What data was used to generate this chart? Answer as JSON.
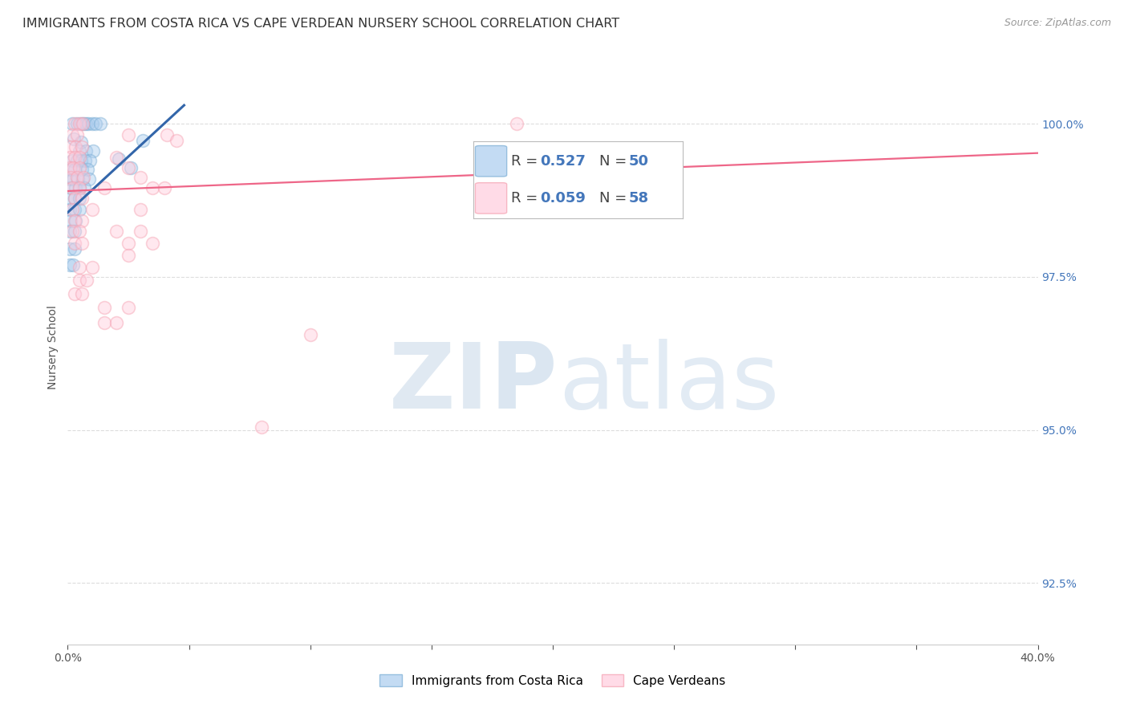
{
  "title": "IMMIGRANTS FROM COSTA RICA VS CAPE VERDEAN NURSERY SCHOOL CORRELATION CHART",
  "source": "Source: ZipAtlas.com",
  "ylabel": "Nursery School",
  "yticks": [
    92.5,
    95.0,
    97.5,
    100.0
  ],
  "ytick_labels": [
    "92.5%",
    "95.0%",
    "97.5%",
    "100.0%"
  ],
  "xlim": [
    0.0,
    40.0
  ],
  "ylim": [
    91.5,
    101.2
  ],
  "legend_label_blue": "Immigrants from Costa Rica",
  "legend_label_pink": "Cape Verdeans",
  "blue_color": "#7aadd4",
  "pink_color": "#f5a0b0",
  "blue_fill_color": "#aaccee",
  "pink_fill_color": "#ffccdd",
  "blue_line_color": "#3366aa",
  "pink_line_color": "#ee6688",
  "blue_scatter": [
    [
      0.2,
      100.0
    ],
    [
      0.4,
      100.0
    ],
    [
      0.55,
      100.0
    ],
    [
      0.65,
      100.0
    ],
    [
      0.75,
      100.0
    ],
    [
      0.85,
      100.0
    ],
    [
      1.0,
      100.0
    ],
    [
      1.15,
      100.0
    ],
    [
      1.35,
      100.0
    ],
    [
      0.25,
      99.75
    ],
    [
      0.55,
      99.7
    ],
    [
      0.5,
      99.55
    ],
    [
      0.75,
      99.55
    ],
    [
      1.05,
      99.55
    ],
    [
      0.18,
      99.4
    ],
    [
      0.38,
      99.4
    ],
    [
      0.55,
      99.4
    ],
    [
      0.72,
      99.4
    ],
    [
      0.92,
      99.4
    ],
    [
      0.12,
      99.25
    ],
    [
      0.28,
      99.25
    ],
    [
      0.58,
      99.25
    ],
    [
      0.82,
      99.25
    ],
    [
      0.08,
      99.1
    ],
    [
      0.22,
      99.1
    ],
    [
      0.42,
      99.1
    ],
    [
      0.62,
      99.1
    ],
    [
      0.88,
      99.1
    ],
    [
      0.12,
      98.95
    ],
    [
      0.32,
      98.95
    ],
    [
      0.48,
      98.95
    ],
    [
      0.68,
      98.95
    ],
    [
      0.08,
      98.78
    ],
    [
      0.28,
      98.78
    ],
    [
      0.48,
      98.78
    ],
    [
      0.08,
      98.6
    ],
    [
      0.28,
      98.6
    ],
    [
      0.48,
      98.6
    ],
    [
      0.12,
      98.42
    ],
    [
      0.32,
      98.42
    ],
    [
      0.08,
      98.25
    ],
    [
      0.28,
      98.25
    ],
    [
      0.08,
      97.95
    ],
    [
      0.28,
      97.95
    ],
    [
      0.08,
      97.7
    ],
    [
      0.22,
      97.7
    ],
    [
      3.1,
      99.72
    ],
    [
      2.1,
      99.42
    ],
    [
      2.6,
      99.28
    ]
  ],
  "pink_scatter": [
    [
      0.28,
      100.0
    ],
    [
      0.48,
      100.0
    ],
    [
      0.62,
      100.0
    ],
    [
      18.5,
      100.0
    ],
    [
      0.18,
      99.82
    ],
    [
      0.38,
      99.82
    ],
    [
      2.5,
      99.82
    ],
    [
      4.1,
      99.82
    ],
    [
      4.5,
      99.72
    ],
    [
      0.12,
      99.62
    ],
    [
      0.32,
      99.62
    ],
    [
      0.58,
      99.62
    ],
    [
      0.08,
      99.45
    ],
    [
      0.28,
      99.45
    ],
    [
      0.48,
      99.45
    ],
    [
      2.0,
      99.45
    ],
    [
      0.08,
      99.28
    ],
    [
      0.22,
      99.28
    ],
    [
      0.48,
      99.28
    ],
    [
      2.5,
      99.28
    ],
    [
      0.12,
      99.12
    ],
    [
      0.38,
      99.12
    ],
    [
      0.65,
      99.12
    ],
    [
      3.0,
      99.12
    ],
    [
      0.18,
      98.95
    ],
    [
      0.48,
      98.95
    ],
    [
      1.5,
      98.95
    ],
    [
      3.5,
      98.95
    ],
    [
      4.0,
      98.95
    ],
    [
      0.28,
      98.78
    ],
    [
      0.58,
      98.78
    ],
    [
      0.18,
      98.6
    ],
    [
      1.0,
      98.6
    ],
    [
      3.0,
      98.6
    ],
    [
      0.28,
      98.42
    ],
    [
      0.58,
      98.42
    ],
    [
      0.18,
      98.25
    ],
    [
      0.48,
      98.25
    ],
    [
      2.0,
      98.25
    ],
    [
      3.0,
      98.25
    ],
    [
      0.28,
      98.05
    ],
    [
      0.58,
      98.05
    ],
    [
      2.5,
      98.05
    ],
    [
      3.5,
      98.05
    ],
    [
      2.5,
      97.85
    ],
    [
      0.48,
      97.65
    ],
    [
      1.0,
      97.65
    ],
    [
      0.48,
      97.45
    ],
    [
      0.78,
      97.45
    ],
    [
      0.28,
      97.22
    ],
    [
      0.58,
      97.22
    ],
    [
      1.5,
      97.0
    ],
    [
      2.5,
      97.0
    ],
    [
      1.5,
      96.75
    ],
    [
      2.0,
      96.75
    ],
    [
      10.0,
      96.55
    ],
    [
      8.0,
      95.05
    ]
  ],
  "blue_line": {
    "x0": 0.0,
    "y0": 98.55,
    "x1": 4.8,
    "y1": 100.3
  },
  "pink_line": {
    "x0": 0.0,
    "y0": 98.9,
    "x1": 40.0,
    "y1": 99.52
  },
  "watermark_zi": "ZI",
  "watermark_p": "P",
  "watermark_atlas": "atlas",
  "background_color": "#FFFFFF",
  "grid_color": "#dddddd",
  "title_fontsize": 11.5,
  "axis_label_fontsize": 10,
  "tick_fontsize": 10,
  "marker_size": 130,
  "marker_alpha": 0.45
}
